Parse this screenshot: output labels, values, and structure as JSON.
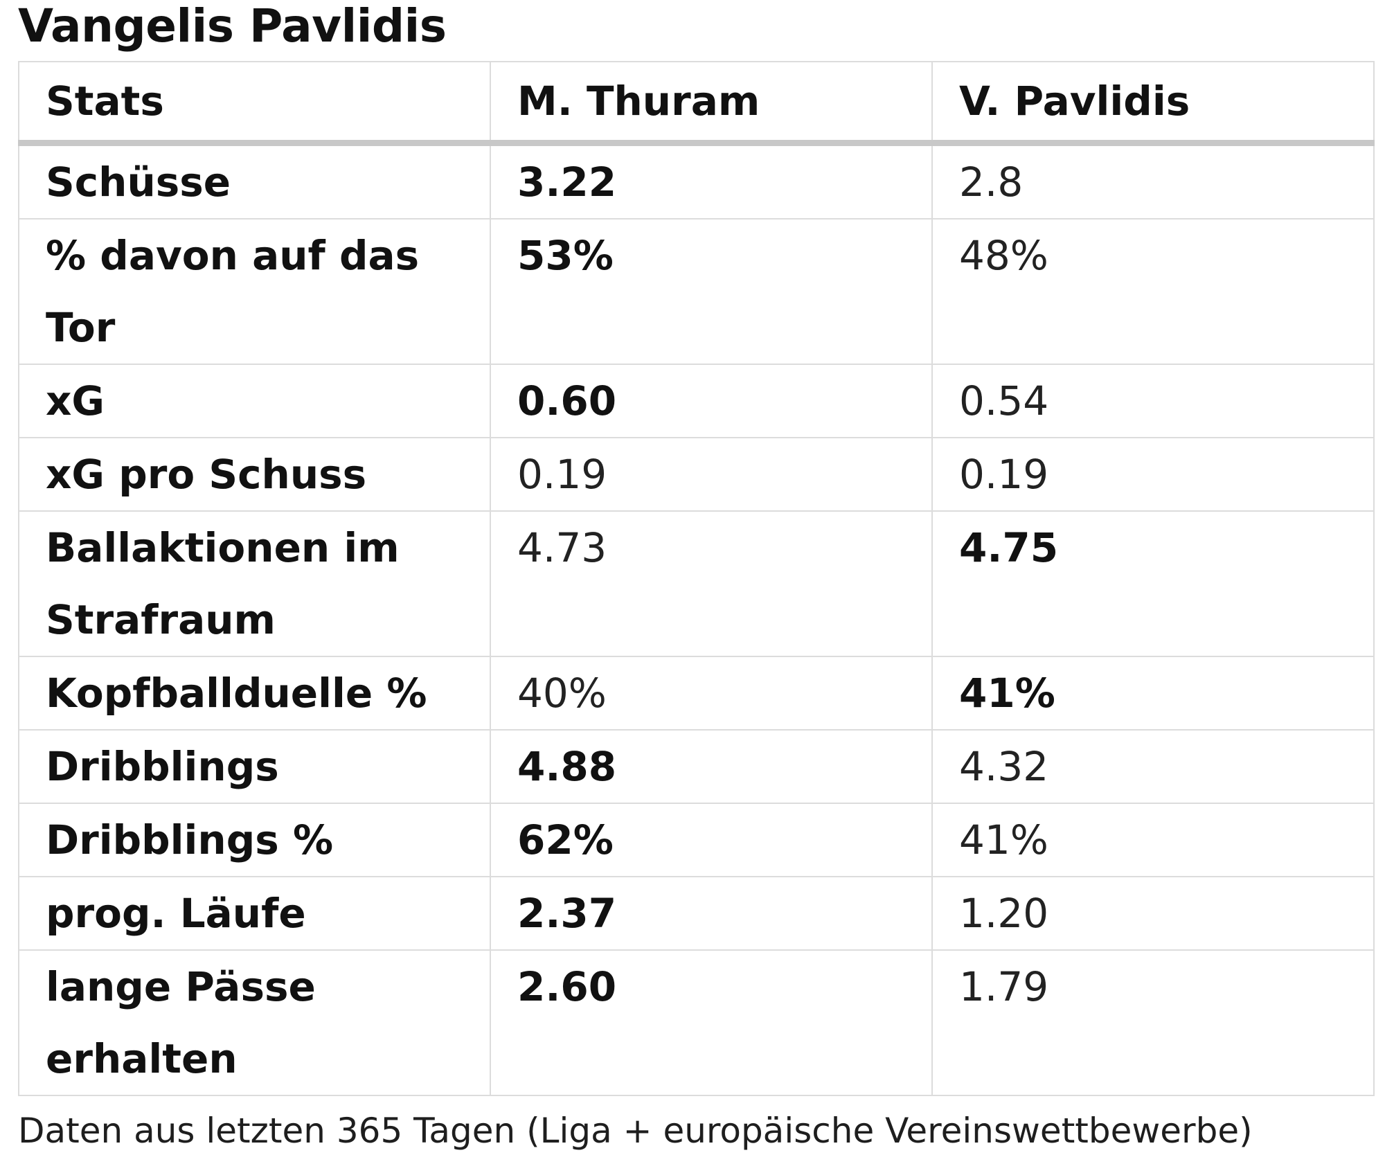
{
  "title": "Vangelis Pavlidis",
  "table": {
    "headers": [
      "Stats",
      "M. Thuram",
      "V. Pavlidis"
    ],
    "rows": [
      {
        "label": "Schüsse",
        "thuram": "3.22",
        "pavlidis": "2.8",
        "best": "thuram"
      },
      {
        "label": "% davon auf das Tor",
        "thuram": "53%",
        "pavlidis": "48%",
        "best": "thuram"
      },
      {
        "label": "xG",
        "thuram": "0.60",
        "pavlidis": "0.54",
        "best": "thuram"
      },
      {
        "label": "xG pro Schuss",
        "thuram": "0.19",
        "pavlidis": "0.19",
        "best": "none"
      },
      {
        "label": "Ballaktionen im Strafraum",
        "thuram": "4.73",
        "pavlidis": "4.75",
        "best": "pavlidis"
      },
      {
        "label": "Kopfballduelle %",
        "thuram": "40%",
        "pavlidis": "41%",
        "best": "pavlidis"
      },
      {
        "label": "Dribblings",
        "thuram": "4.88",
        "pavlidis": "4.32",
        "best": "thuram"
      },
      {
        "label": "Dribblings %",
        "thuram": "62%",
        "pavlidis": "41%",
        "best": "thuram"
      },
      {
        "label": "prog. Läufe",
        "thuram": "2.37",
        "pavlidis": "1.20",
        "best": "thuram"
      },
      {
        "label": "lange Pässe erhalten",
        "thuram": "2.60",
        "pavlidis": "1.79",
        "best": "thuram"
      }
    ]
  },
  "footnote": "Daten aus letzten 365 Tagen (Liga + europäische Vereinswettbewerbe)"
}
